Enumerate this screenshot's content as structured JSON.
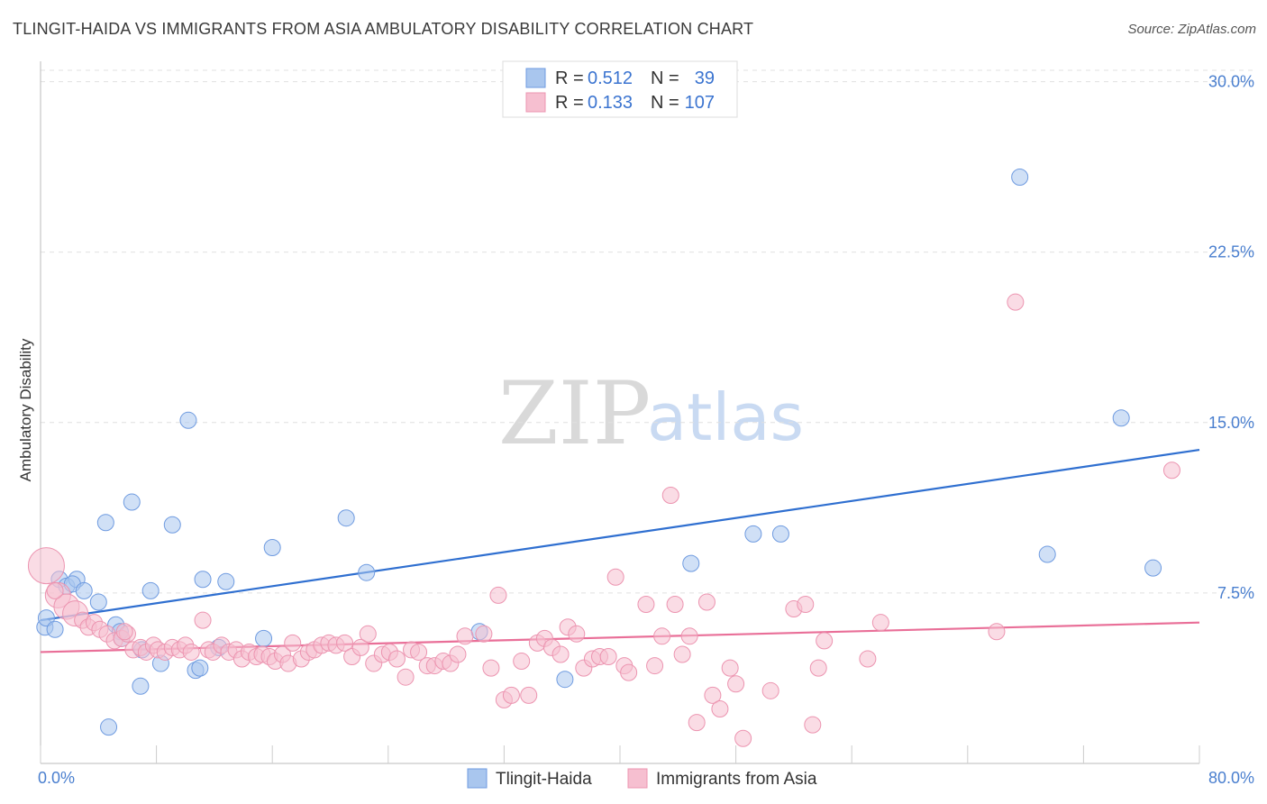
{
  "title": "TLINGIT-HAIDA VS IMMIGRANTS FROM ASIA AMBULATORY DISABILITY CORRELATION CHART",
  "source": "Source: ZipAtlas.com",
  "watermark": {
    "part1": "ZIP",
    "part2": "atlas"
  },
  "legend": {
    "row1": {
      "r_label": "R =",
      "r_value": "0.512",
      "n_label": "N =",
      "n_value": "39"
    },
    "row2": {
      "r_label": "R =",
      "r_value": "0.133",
      "n_label": "N =",
      "n_value": "107"
    }
  },
  "chart_data": {
    "type": "scatter",
    "title": "TLINGIT-HAIDA VS IMMIGRANTS FROM ASIA AMBULATORY DISABILITY CORRELATION CHART",
    "xlabel": "",
    "ylabel": "Ambulatory Disability",
    "xlim": [
      0,
      80
    ],
    "ylim": [
      0,
      30.5
    ],
    "x_tick_labels": [
      "0.0%",
      "80.0%"
    ],
    "y_ticks": [
      7.5,
      15.0,
      22.5,
      30.0
    ],
    "y_tick_labels": [
      "7.5%",
      "15.0%",
      "22.5%",
      "30.0%"
    ],
    "grid": true,
    "legend_placement": "bottom",
    "series": [
      {
        "name": "Tlingit-Haida",
        "color": "#a9c6ee",
        "stroke": "#6f9be0",
        "line_color": "#2f6fd0",
        "trend": {
          "x0": 0,
          "y0": 6.3,
          "x1": 80,
          "y1": 13.8
        },
        "points": [
          [
            0.3,
            6.0
          ],
          [
            0.4,
            6.4
          ],
          [
            1.0,
            5.9
          ],
          [
            1.3,
            8.1
          ],
          [
            1.8,
            7.8
          ],
          [
            2.5,
            8.1
          ],
          [
            2.2,
            7.9
          ],
          [
            3.0,
            7.6
          ],
          [
            4.0,
            7.1
          ],
          [
            4.5,
            10.6
          ],
          [
            4.7,
            1.6
          ],
          [
            5.2,
            6.1
          ],
          [
            5.5,
            5.8
          ],
          [
            5.6,
            5.5
          ],
          [
            6.3,
            11.5
          ],
          [
            6.9,
            3.4
          ],
          [
            7.0,
            5.0
          ],
          [
            7.6,
            7.6
          ],
          [
            8.3,
            4.4
          ],
          [
            9.1,
            10.5
          ],
          [
            10.2,
            15.1
          ],
          [
            10.7,
            4.1
          ],
          [
            11.0,
            4.2
          ],
          [
            11.2,
            8.1
          ],
          [
            12.3,
            5.1
          ],
          [
            12.8,
            8.0
          ],
          [
            15.4,
            5.5
          ],
          [
            16.0,
            9.5
          ],
          [
            21.1,
            10.8
          ],
          [
            22.5,
            8.4
          ],
          [
            30.3,
            5.8
          ],
          [
            36.2,
            3.7
          ],
          [
            44.9,
            8.8
          ],
          [
            49.2,
            10.1
          ],
          [
            51.1,
            10.1
          ],
          [
            67.6,
            25.8
          ],
          [
            69.5,
            9.2
          ],
          [
            74.6,
            15.2
          ],
          [
            76.8,
            8.6
          ]
        ]
      },
      {
        "name": "Immigrants from Asia",
        "color": "#f6bfd0",
        "stroke": "#ec94b0",
        "line_color": "#e96f98",
        "trend": {
          "x0": 0,
          "y0": 4.9,
          "x1": 80,
          "y1": 6.2
        },
        "points": [
          [
            0.4,
            8.7
          ],
          [
            1.2,
            7.4
          ],
          [
            1.8,
            6.9
          ],
          [
            2.4,
            6.6
          ],
          [
            2.9,
            6.3
          ],
          [
            3.3,
            6.0
          ],
          [
            3.7,
            6.2
          ],
          [
            4.1,
            5.9
          ],
          [
            4.6,
            5.7
          ],
          [
            5.1,
            5.4
          ],
          [
            5.6,
            5.5
          ],
          [
            6.0,
            5.7
          ],
          [
            5.8,
            5.8
          ],
          [
            6.4,
            5.0
          ],
          [
            6.9,
            5.1
          ],
          [
            7.3,
            4.9
          ],
          [
            7.8,
            5.2
          ],
          [
            8.1,
            5.0
          ],
          [
            8.6,
            4.9
          ],
          [
            9.1,
            5.1
          ],
          [
            9.6,
            5.0
          ],
          [
            10.0,
            5.2
          ],
          [
            10.4,
            4.9
          ],
          [
            11.2,
            6.3
          ],
          [
            11.6,
            5.0
          ],
          [
            11.9,
            4.9
          ],
          [
            12.5,
            5.2
          ],
          [
            13.0,
            4.9
          ],
          [
            13.5,
            5.0
          ],
          [
            13.9,
            4.6
          ],
          [
            14.4,
            4.9
          ],
          [
            14.9,
            4.7
          ],
          [
            15.3,
            4.8
          ],
          [
            15.8,
            4.7
          ],
          [
            16.2,
            4.5
          ],
          [
            16.7,
            4.8
          ],
          [
            17.1,
            4.4
          ],
          [
            17.4,
            5.3
          ],
          [
            18.0,
            4.6
          ],
          [
            18.5,
            4.9
          ],
          [
            18.9,
            5.0
          ],
          [
            19.4,
            5.2
          ],
          [
            19.9,
            5.3
          ],
          [
            20.4,
            5.2
          ],
          [
            21.0,
            5.3
          ],
          [
            21.5,
            4.7
          ],
          [
            22.1,
            5.1
          ],
          [
            22.6,
            5.7
          ],
          [
            23.0,
            4.4
          ],
          [
            23.6,
            4.8
          ],
          [
            24.1,
            4.9
          ],
          [
            24.6,
            4.6
          ],
          [
            25.2,
            3.8
          ],
          [
            25.6,
            5.0
          ],
          [
            26.1,
            4.9
          ],
          [
            26.7,
            4.3
          ],
          [
            27.2,
            4.3
          ],
          [
            27.8,
            4.5
          ],
          [
            28.3,
            4.4
          ],
          [
            28.8,
            4.8
          ],
          [
            29.3,
            5.6
          ],
          [
            30.6,
            5.7
          ],
          [
            31.1,
            4.2
          ],
          [
            31.6,
            7.4
          ],
          [
            32.0,
            2.8
          ],
          [
            32.5,
            3.0
          ],
          [
            33.2,
            4.5
          ],
          [
            33.7,
            3.0
          ],
          [
            34.3,
            5.3
          ],
          [
            34.8,
            5.5
          ],
          [
            35.3,
            5.1
          ],
          [
            35.9,
            4.8
          ],
          [
            36.4,
            6.0
          ],
          [
            37.0,
            5.7
          ],
          [
            37.5,
            4.2
          ],
          [
            38.1,
            4.6
          ],
          [
            38.6,
            4.7
          ],
          [
            39.2,
            4.7
          ],
          [
            39.7,
            8.2
          ],
          [
            40.3,
            4.3
          ],
          [
            40.6,
            4.0
          ],
          [
            41.8,
            7.0
          ],
          [
            42.4,
            4.3
          ],
          [
            42.9,
            5.6
          ],
          [
            43.5,
            11.8
          ],
          [
            43.8,
            7.0
          ],
          [
            44.3,
            4.8
          ],
          [
            44.8,
            5.6
          ],
          [
            45.3,
            1.8
          ],
          [
            46.0,
            7.1
          ],
          [
            46.4,
            3.0
          ],
          [
            46.9,
            2.4
          ],
          [
            47.6,
            4.2
          ],
          [
            48.0,
            3.5
          ],
          [
            48.5,
            1.1
          ],
          [
            50.4,
            3.2
          ],
          [
            52.0,
            6.8
          ],
          [
            52.8,
            7.0
          ],
          [
            53.3,
            1.7
          ],
          [
            53.7,
            4.2
          ],
          [
            54.1,
            5.4
          ],
          [
            57.1,
            4.6
          ],
          [
            58.0,
            6.2
          ],
          [
            66.0,
            5.8
          ],
          [
            67.3,
            20.3
          ],
          [
            78.1,
            12.9
          ],
          [
            1.0,
            7.6
          ]
        ]
      }
    ]
  },
  "bottom_legend": {
    "item1": "Tlingit-Haida",
    "item2": "Immigrants from Asia"
  },
  "colors": {
    "blue_fill": "#a9c6ee",
    "blue_line": "#2f6fd0",
    "pink_fill": "#f6bfd0",
    "pink_line": "#e96f98",
    "tick_text": "#4a7fcf"
  }
}
